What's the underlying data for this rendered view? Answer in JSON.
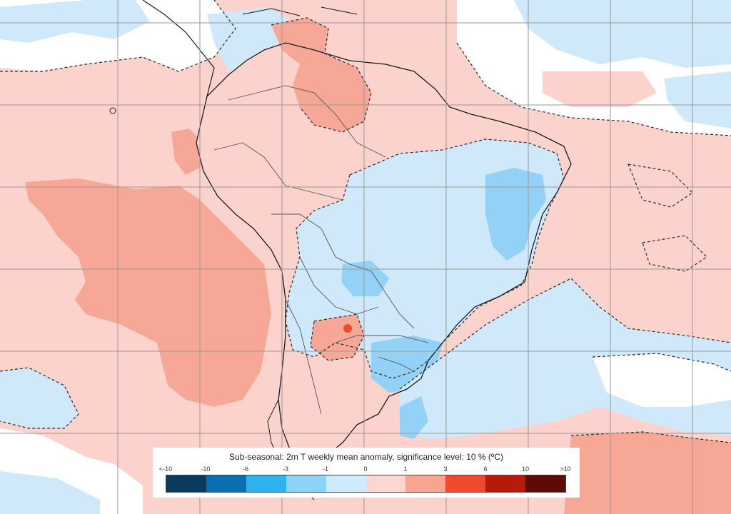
{
  "legend": {
    "title": "Sub-seasonal: 2m T weekly mean anomaly, significance level: 10 % (ºC)",
    "ticks": [
      "<-10",
      "-10",
      "-6",
      "-3",
      "-1",
      "0",
      "1",
      "3",
      "6",
      "10",
      ">10"
    ],
    "colors": [
      "#0b3b5c",
      "#0a6fb0",
      "#2fb2ee",
      "#8fd2f7",
      "#cfeafb",
      "#fcd7d2",
      "#f7a493",
      "#f04a2e",
      "#b51a0a",
      "#5c0b05"
    ]
  },
  "map": {
    "region": "south-america",
    "ocean_anomaly_colors": {
      "warm_light": "#fbd3cc",
      "warm_medium": "#f6a796",
      "warm_strong": "#f04a2e",
      "cold_light": "#cfe9fb",
      "cold_medium": "#93d1f6",
      "neutral": "#ffffff"
    },
    "gridlines": true,
    "coastline_color": "#1a1a1a",
    "border_color": "#555555",
    "grid_color": "#9a9a92"
  }
}
